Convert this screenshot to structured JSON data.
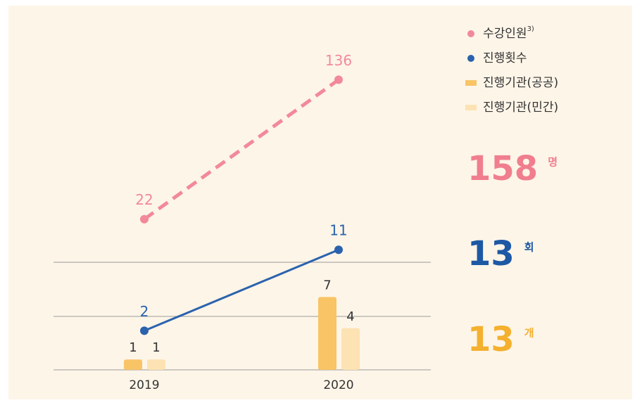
{
  "chart_data": {
    "type": "combo",
    "categories": [
      "2019",
      "2020"
    ],
    "series": [
      {
        "name": "수강인원",
        "note": "3)",
        "type": "line",
        "dashed": true,
        "color": "#f2899a",
        "values": [
          22,
          136
        ]
      },
      {
        "name": "진행횟수",
        "type": "line",
        "dashed": false,
        "color": "#2b62ad",
        "values": [
          2,
          11
        ]
      },
      {
        "name": "진행기관(공공)",
        "type": "bar",
        "color": "#f8c466",
        "values": [
          1,
          7
        ]
      },
      {
        "name": "진행기관(민간)",
        "type": "bar",
        "color": "#fde2b3",
        "values": [
          1,
          4
        ]
      }
    ],
    "totals": [
      {
        "value": 158,
        "unit": "명",
        "color": "#f07e8e"
      },
      {
        "value": 13,
        "unit": "회",
        "color": "#1d58a4"
      },
      {
        "value": 13,
        "unit": "개",
        "color": "#f4b02e"
      }
    ]
  }
}
